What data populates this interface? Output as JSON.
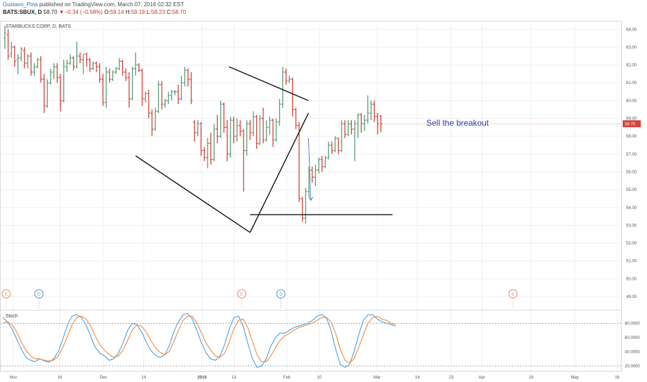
{
  "header": {
    "user": "Gustavo_Pina",
    "published": " published on TradingView.com, March 07, 2016 02:32 EST",
    "symbol": "BATS:SBUX, D",
    "last": "58.70",
    "change_arrow": "▼",
    "change": "−0.34 (−0.58%)",
    "open_label": "O:",
    "open": "59.14",
    "high_label": "H:",
    "high": "59.19",
    "low_label": "L:",
    "low": "58.23",
    "close_label": "C:",
    "close": "58.70"
  },
  "chart_data": [
    {
      "type": "ohlc",
      "title": "STARBUCKS CORP, D, BATS",
      "ylim": [
        48.3,
        64.4
      ],
      "y_ticks": [
        "64.00",
        "63.00",
        "62.00",
        "61.00",
        "60.00",
        "59.00",
        "58.00",
        "57.00",
        "56.00",
        "55.00",
        "54.00",
        "53.00",
        "52.00",
        "51.00",
        "50.00",
        "49.00"
      ],
      "x_ticks": [
        "Nov",
        "16",
        "Dec",
        "14",
        "2016",
        "13",
        "Feb",
        "10",
        "Mar",
        "14",
        "23",
        "Apr",
        "18",
        "May",
        "16"
      ],
      "last_price_label": "58.70",
      "colors": {
        "up": "#5b9a78",
        "down": "#d2433b",
        "last_price": "#d2433b"
      },
      "bars": [
        [
          63.5,
          64.2,
          62.9,
          63.8
        ],
        [
          63.7,
          64.0,
          62.3,
          62.5
        ],
        [
          62.6,
          63.3,
          62.4,
          63.0
        ],
        [
          63.0,
          63.1,
          61.9,
          62.2
        ],
        [
          62.3,
          62.6,
          61.5,
          62.4
        ],
        [
          62.4,
          63.0,
          62.2,
          62.9
        ],
        [
          62.8,
          63.0,
          61.8,
          62.1
        ],
        [
          62.1,
          62.6,
          61.8,
          62.5
        ],
        [
          62.5,
          62.7,
          61.4,
          61.6
        ],
        [
          61.6,
          62.1,
          61.4,
          61.9
        ],
        [
          61.9,
          62.4,
          61.8,
          62.3
        ],
        [
          62.3,
          62.5,
          61.0,
          61.2
        ],
        [
          61.2,
          61.5,
          59.3,
          59.7
        ],
        [
          59.7,
          61.2,
          59.6,
          61.0
        ],
        [
          61.0,
          61.8,
          60.9,
          61.6
        ],
        [
          61.6,
          62.1,
          61.2,
          61.9
        ],
        [
          61.9,
          62.1,
          61.0,
          61.3
        ],
        [
          61.3,
          61.5,
          59.4,
          60.0
        ],
        [
          60.0,
          62.3,
          59.9,
          61.9
        ],
        [
          61.9,
          62.3,
          61.6,
          62.1
        ],
        [
          62.1,
          62.6,
          62.0,
          62.4
        ],
        [
          62.4,
          62.5,
          61.7,
          61.9
        ],
        [
          61.9,
          63.3,
          61.8,
          62.5
        ],
        [
          62.5,
          62.7,
          62.1,
          62.3
        ],
        [
          62.3,
          62.6,
          61.5,
          62.6
        ],
        [
          62.6,
          62.7,
          61.9,
          62.3
        ],
        [
          62.3,
          62.4,
          61.6,
          61.8
        ],
        [
          61.8,
          62.2,
          61.7,
          62.1
        ],
        [
          62.1,
          62.2,
          61.6,
          61.9
        ],
        [
          61.9,
          62.1,
          61.0,
          61.2
        ],
        [
          61.2,
          61.5,
          59.7,
          59.9
        ],
        [
          59.9,
          61.9,
          59.6,
          61.6
        ],
        [
          61.6,
          61.8,
          61.0,
          61.2
        ],
        [
          61.2,
          61.7,
          61.1,
          61.6
        ],
        [
          61.6,
          61.9,
          61.5,
          61.8
        ],
        [
          61.8,
          62.4,
          61.7,
          62.2
        ],
        [
          62.2,
          62.3,
          61.4,
          61.6
        ],
        [
          61.6,
          61.8,
          61.1,
          61.3
        ],
        [
          61.3,
          61.6,
          59.6,
          60.1
        ],
        [
          60.1,
          61.9,
          60.0,
          61.8
        ],
        [
          61.8,
          62.7,
          61.4,
          62.0
        ],
        [
          62.0,
          62.1,
          61.6,
          61.7
        ],
        [
          61.7,
          61.8,
          59.7,
          60.1
        ],
        [
          60.1,
          60.5,
          59.9,
          60.4
        ],
        [
          60.4,
          60.6,
          59.0,
          59.3
        ],
        [
          59.3,
          59.5,
          58.0,
          58.4
        ],
        [
          58.4,
          59.6,
          58.3,
          59.4
        ],
        [
          59.4,
          61.1,
          59.3,
          60.9
        ],
        [
          60.9,
          61.1,
          59.5,
          59.8
        ],
        [
          59.8,
          60.1,
          59.6,
          60.0
        ],
        [
          60.0,
          60.5,
          59.8,
          60.3
        ],
        [
          60.3,
          60.6,
          60.0,
          60.5
        ],
        [
          60.5,
          60.6,
          60.3,
          60.5
        ],
        [
          60.5,
          60.9,
          59.8,
          60.1
        ],
        [
          60.1,
          61.4,
          60.0,
          61.0
        ],
        [
          61.0,
          61.9,
          60.8,
          61.7
        ],
        [
          61.7,
          61.8,
          60.8,
          61.2
        ],
        [
          61.2,
          61.6,
          59.8,
          60.0
        ],
        [
          58.8,
          58.9,
          57.7,
          58.2
        ],
        [
          58.2,
          58.9,
          58.0,
          58.7
        ],
        [
          58.7,
          58.8,
          56.9,
          57.2
        ],
        [
          57.2,
          57.4,
          56.6,
          56.8
        ],
        [
          56.8,
          57.9,
          56.2,
          57.6
        ],
        [
          57.6,
          58.2,
          56.4,
          56.7
        ],
        [
          56.7,
          58.7,
          56.6,
          58.4
        ],
        [
          58.4,
          59.2,
          57.6,
          58.0
        ],
        [
          58.0,
          60.0,
          57.9,
          59.8
        ],
        [
          59.8,
          59.9,
          58.2,
          58.5
        ],
        [
          58.5,
          58.9,
          56.6,
          57.0
        ],
        [
          57.0,
          59.1,
          56.8,
          58.9
        ],
        [
          58.9,
          59.1,
          57.6,
          58.0
        ],
        [
          58.0,
          59.0,
          57.7,
          58.6
        ],
        [
          58.6,
          58.9,
          58.0,
          58.3
        ],
        [
          58.3,
          58.4,
          54.9,
          57.2
        ],
        [
          57.2,
          58.9,
          56.9,
          58.7
        ],
        [
          58.7,
          58.9,
          57.8,
          58.2
        ],
        [
          58.2,
          59.4,
          58.0,
          59.1
        ],
        [
          59.1,
          59.2,
          57.3,
          57.6
        ],
        [
          57.6,
          59.2,
          57.5,
          59.0
        ],
        [
          59.0,
          59.6,
          57.6,
          57.8
        ],
        [
          57.8,
          58.9,
          57.7,
          58.5
        ],
        [
          58.5,
          59.1,
          58.1,
          58.9
        ],
        [
          58.9,
          59.0,
          57.4,
          57.8
        ],
        [
          57.8,
          59.0,
          57.7,
          58.8
        ],
        [
          58.8,
          60.1,
          58.6,
          59.8
        ],
        [
          59.8,
          61.9,
          59.6,
          61.6
        ],
        [
          61.6,
          61.8,
          60.9,
          61.1
        ],
        [
          61.1,
          61.4,
          61.0,
          61.2
        ],
        [
          61.2,
          61.3,
          59.1,
          59.5
        ],
        [
          59.5,
          59.6,
          58.4,
          58.6
        ],
        [
          58.6,
          58.8,
          54.3,
          54.5
        ],
        [
          54.5,
          54.6,
          53.2,
          53.4
        ],
        [
          53.4,
          55.1,
          53.1,
          54.9
        ],
        [
          54.9,
          56.3,
          54.6,
          56.1
        ],
        [
          56.1,
          56.3,
          55.4,
          55.7
        ],
        [
          55.7,
          56.4,
          55.2,
          56.1
        ],
        [
          56.1,
          56.8,
          55.9,
          56.7
        ],
        [
          56.7,
          56.9,
          56.0,
          56.3
        ],
        [
          56.3,
          56.9,
          56.2,
          56.8
        ],
        [
          56.8,
          57.7,
          56.7,
          57.5
        ],
        [
          57.5,
          57.7,
          57.0,
          57.2
        ],
        [
          57.2,
          58.0,
          57.1,
          57.9
        ],
        [
          57.9,
          57.9,
          57.0,
          57.2
        ],
        [
          57.2,
          58.9,
          57.1,
          58.7
        ],
        [
          58.7,
          58.9,
          57.9,
          58.1
        ],
        [
          58.1,
          58.9,
          58.0,
          58.7
        ],
        [
          58.7,
          58.9,
          58.1,
          58.4
        ],
        [
          58.4,
          58.9,
          56.6,
          58.7
        ],
        [
          58.7,
          59.3,
          57.9,
          59.2
        ],
        [
          59.2,
          59.3,
          58.2,
          58.7
        ],
        [
          58.7,
          59.2,
          58.3,
          58.9
        ],
        [
          58.9,
          60.3,
          58.7,
          59.3
        ],
        [
          59.3,
          60.0,
          58.9,
          59.8
        ],
        [
          59.8,
          60.0,
          58.8,
          59.1
        ],
        [
          59.1,
          59.3,
          58.1,
          58.7
        ],
        [
          59.14,
          59.19,
          58.23,
          58.7
        ]
      ],
      "events": [
        {
          "type": "E",
          "bar": 0,
          "color": "#e08a6a"
        },
        {
          "type": "D",
          "bar": 10,
          "color": "#5b8fc9"
        },
        {
          "type": "E",
          "bar": 72,
          "color": "#e08a6a"
        },
        {
          "type": "D",
          "bar": 84,
          "color": "#5b8fc9"
        },
        {
          "type": "E",
          "bar": 155,
          "color": "#e08a6a"
        }
      ],
      "drawings": {
        "annotation": "Sell the breakout",
        "annotation_color": "#2a3ea8",
        "arrow_color": "#5b7fc4",
        "line_color": "#111111",
        "lines": [
          {
            "from": [
              "2015-12-24",
              56.9
            ],
            "to": [
              "2016-02-11",
              52.6
            ]
          },
          {
            "from": [
              "2016-02-11",
              52.6
            ],
            "to": [
              "2016-03-07",
              59.3
            ]
          },
          {
            "from": [
              "2016-02-02",
              61.9
            ],
            "to": [
              "2016-03-07",
              60.0
            ]
          },
          {
            "from": [
              "2016-02-11",
              53.6
            ],
            "to": [
              "2016-04-12",
              53.6
            ]
          }
        ],
        "arrow": {
          "from": [
            "2016-03-07",
            57.9
          ],
          "to": [
            "2016-03-08",
            54.4
          ]
        }
      }
    },
    {
      "type": "line",
      "title": "Stoch",
      "ylim": [
        14,
        97
      ],
      "y_ticks": [
        "80.0000",
        "60.0000",
        "40.0000",
        "20.0000"
      ],
      "levels": [
        80,
        20
      ],
      "series": [
        {
          "color": "#4aa0e0",
          "values": [
            88,
            82,
            72,
            58,
            44,
            32,
            28,
            26,
            30,
            27,
            25,
            30,
            40,
            58,
            78,
            90,
            92,
            88,
            78,
            62,
            46,
            38,
            34,
            28,
            30,
            38,
            52,
            70,
            80,
            78,
            68,
            54,
            42,
            35,
            32,
            35,
            48,
            68,
            82,
            92,
            94,
            86,
            70,
            52,
            38,
            30,
            28,
            34,
            50,
            72,
            88,
            90,
            76,
            52,
            30,
            18,
            20,
            30,
            48,
            60,
            66,
            66,
            70,
            74,
            76,
            78,
            80,
            84,
            90,
            92,
            88,
            70,
            44,
            22,
            18,
            22,
            40,
            64,
            84,
            92,
            92,
            86,
            82,
            80,
            78,
            76
          ]
        },
        {
          "color": "#f0883a",
          "values": [
            80,
            82,
            78,
            68,
            54,
            42,
            34,
            30,
            30,
            28,
            27,
            28,
            34,
            46,
            62,
            78,
            88,
            90,
            86,
            76,
            62,
            50,
            42,
            36,
            32,
            34,
            42,
            56,
            70,
            78,
            76,
            68,
            56,
            46,
            39,
            36,
            40,
            54,
            70,
            84,
            90,
            90,
            80,
            66,
            52,
            42,
            34,
            32,
            38,
            54,
            72,
            84,
            86,
            74,
            54,
            36,
            26,
            26,
            34,
            46,
            56,
            62,
            66,
            70,
            74,
            76,
            78,
            80,
            84,
            88,
            88,
            82,
            66,
            44,
            28,
            24,
            30,
            46,
            64,
            80,
            88,
            90,
            86,
            84,
            80,
            78
          ]
        }
      ]
    }
  ]
}
